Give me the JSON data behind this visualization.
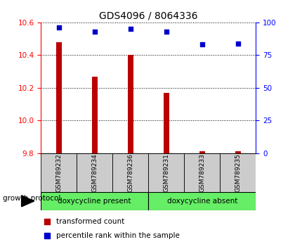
{
  "title": "GDS4096 / 8064336",
  "samples": [
    "GSM789232",
    "GSM789234",
    "GSM789236",
    "GSM789231",
    "GSM789233",
    "GSM789235"
  ],
  "bar_values": [
    10.48,
    10.27,
    10.4,
    10.17,
    9.81,
    9.81
  ],
  "bar_baseline": 9.8,
  "percentile_values": [
    96,
    93,
    95,
    93,
    83,
    84
  ],
  "ylim_left": [
    9.8,
    10.6
  ],
  "ylim_right": [
    0,
    100
  ],
  "yticks_left": [
    9.8,
    10.0,
    10.2,
    10.4,
    10.6
  ],
  "yticks_right": [
    0,
    25,
    50,
    75,
    100
  ],
  "bar_color": "#bb0000",
  "marker_color": "#0000cc",
  "group1_label": "doxycycline present",
  "group2_label": "doxycycline absent",
  "group1_indices": [
    0,
    1,
    2
  ],
  "group2_indices": [
    3,
    4,
    5
  ],
  "group_bg_color": "#66ee66",
  "sample_bg_color": "#cccccc",
  "protocol_label": "growth protocol",
  "legend_bar_label": "transformed count",
  "legend_marker_label": "percentile rank within the sample",
  "title_fontsize": 10,
  "tick_fontsize": 7.5,
  "bar_width": 0.15
}
